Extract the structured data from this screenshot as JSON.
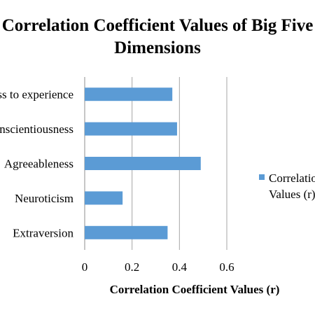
{
  "chart_data": {
    "type": "bar",
    "orientation": "horizontal",
    "title_line1": "Correlation  Coefficient Values  of Big Five",
    "title_line2": "Dimensions",
    "categories": [
      "Openness to experience",
      "Conscientiousness",
      "Agreeableness",
      "Neuroticism",
      "Extraversion"
    ],
    "series": [
      {
        "name": "Correlation Coefficient Values (r)",
        "values": [
          0.37,
          0.39,
          0.49,
          0.16,
          0.35
        ],
        "color": "#5b9bd5"
      }
    ],
    "xlabel": "Correlation  Coefficient Values (r)",
    "ylabel": "",
    "xlim": [
      0,
      0.6
    ],
    "xticks": [
      "0",
      "0.2",
      "0.4",
      "0.6"
    ],
    "legend_lines": [
      "Correlation Coefficient",
      "Values (r)"
    ],
    "grid": true,
    "legend_position": "right"
  }
}
